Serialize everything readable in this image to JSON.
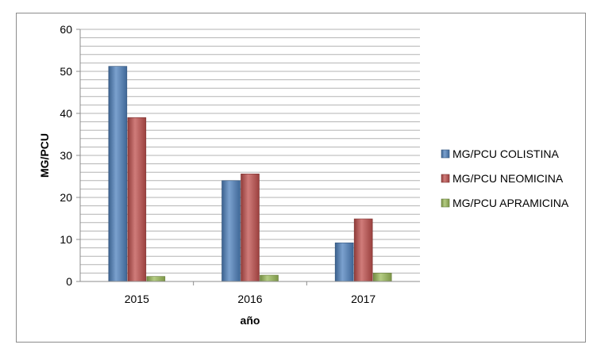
{
  "chart_data": {
    "type": "bar",
    "categories": [
      "2015",
      "2016",
      "2017"
    ],
    "series": [
      {
        "name": "MG/PCU COLISTINA",
        "values": [
          51.2,
          24,
          9.2
        ]
      },
      {
        "name": "MG/PCU NEOMICINA",
        "values": [
          39,
          25.6,
          14.9
        ]
      },
      {
        "name": "MG/PCU APRAMICINA",
        "values": [
          1.2,
          1.5,
          2
        ]
      }
    ],
    "xlabel": "año",
    "ylabel": "MG/PCU",
    "ylim": [
      0,
      60
    ],
    "yticks": [
      0,
      10,
      20,
      30,
      40,
      50,
      60
    ],
    "grid": true,
    "legend_position": "right",
    "colors": {
      "MG/PCU COLISTINA": "#4f81bd",
      "MG/PCU NEOMICINA": "#c0504d",
      "MG/PCU APRAMICINA": "#9bbb59"
    }
  }
}
